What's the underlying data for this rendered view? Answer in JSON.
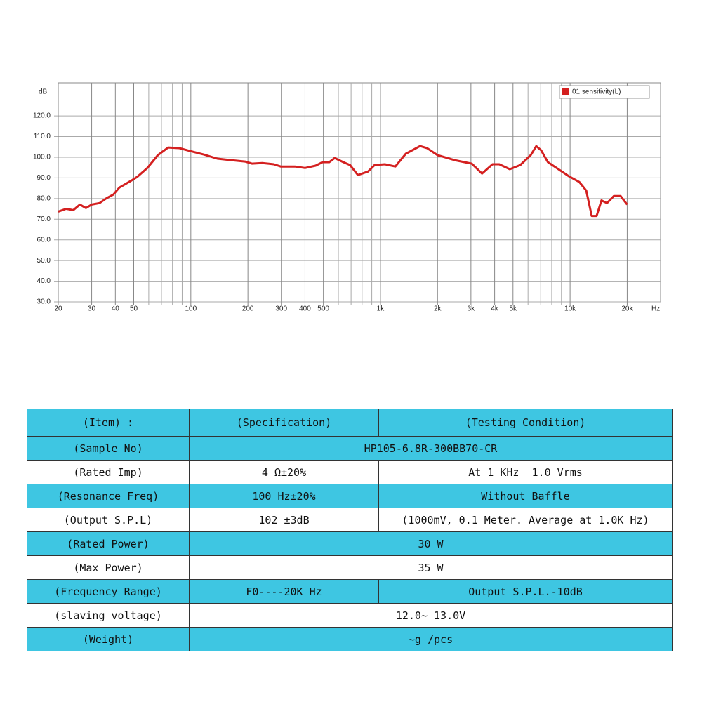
{
  "chart_data": {
    "type": "line",
    "log_x": true,
    "grid": true,
    "legend_position": "upper right",
    "y_label": "dB",
    "x_label": "Hz",
    "xlim": [
      20,
      30000
    ],
    "ylim": [
      30,
      136
    ],
    "xticks": [
      20,
      30,
      40,
      50,
      100,
      200,
      300,
      400,
      500,
      {
        "value": 1000,
        "label": "1k"
      },
      {
        "value": 2000,
        "label": "2k"
      },
      {
        "value": 3000,
        "label": "3k"
      },
      {
        "value": 4000,
        "label": "4k"
      },
      {
        "value": 5000,
        "label": "5k"
      },
      {
        "value": 10000,
        "label": "10k"
      },
      {
        "value": 20000,
        "label": "20k"
      }
    ],
    "x_minor_ticks": [
      60,
      70,
      80,
      90,
      600,
      700,
      800,
      900,
      6000,
      7000,
      8000,
      9000
    ],
    "yticks": [
      {
        "value": 30,
        "label": "30.0"
      },
      {
        "value": 40,
        "label": "40.0"
      },
      {
        "value": 50,
        "label": "50.0"
      },
      {
        "value": 60,
        "label": "60.0"
      },
      {
        "value": 70,
        "label": "70.0"
      },
      {
        "value": 80,
        "label": "80.0"
      },
      {
        "value": 90,
        "label": "90.0"
      },
      {
        "value": 100,
        "label": "100.0"
      },
      {
        "value": 110,
        "label": "110.0"
      },
      {
        "value": 120,
        "label": "120.0"
      }
    ],
    "x": [
      20,
      22,
      24,
      26,
      28,
      30,
      33,
      36,
      39,
      42,
      48,
      52,
      59,
      67,
      76,
      87,
      99,
      117,
      138,
      163,
      193,
      210,
      238,
      274,
      298,
      354,
      400,
      455,
      495,
      537,
      574,
      637,
      691,
      760,
      860,
      932,
      1055,
      1198,
      1360,
      1618,
      1761,
      2000,
      2460,
      3030,
      3430,
      3900,
      4230,
      4810,
      5460,
      6200,
      6630,
      7030,
      7640,
      8680,
      9850,
      11190,
      12160,
      13000,
      13800,
      14640,
      15640,
      17000,
      18470,
      20000
    ],
    "series": [
      {
        "name": "01 sensitivity(L)",
        "color": "#d42020",
        "values": [
          73.7,
          75,
          74.4,
          77.1,
          75.4,
          77.1,
          77.8,
          80.2,
          81.9,
          85.3,
          88.4,
          90.4,
          94.8,
          101,
          104.7,
          104.4,
          103,
          101.3,
          99.3,
          98.6,
          97.9,
          96.9,
          97.2,
          96.6,
          95.5,
          95.5,
          94.8,
          95.9,
          97.6,
          97.6,
          99.6,
          97.6,
          96.2,
          91.4,
          93.1,
          96.2,
          96.6,
          95.5,
          101.7,
          105.4,
          104.4,
          101,
          98.6,
          96.9,
          92.1,
          96.6,
          96.6,
          94.2,
          96.2,
          101,
          105.4,
          103.4,
          97.6,
          94.2,
          90.8,
          88,
          83.9,
          71.6,
          71.6,
          79.1,
          77.8,
          81.2,
          81.2,
          77.1
        ]
      }
    ]
  },
  "table": {
    "header": [
      "(Item) :",
      "(Specification)",
      "(Testing Condition)"
    ],
    "rows": [
      [
        "(Sample No)",
        "HP105-6.8R-300BB70-CR"
      ],
      [
        "(Rated Imp)",
        "4 Ω±20%",
        "At 1 KHz  1.0 Vrms"
      ],
      [
        "(Resonance Freq)",
        "100 Hz±20%",
        "Without Baffle"
      ],
      [
        "(Output S.P.L)",
        "102 ±3dB",
        "(1000mV, 0.1 Meter. Average at 1.0K Hz)"
      ],
      [
        "(Rated Power)",
        "30 W"
      ],
      [
        "(Max Power)",
        "35 W"
      ],
      [
        "(Frequency Range)",
        "F0----20K Hz",
        "Output S.P.L.-10dB"
      ],
      [
        "(slaving voltage)",
        "12.0~ 13.0V"
      ],
      [
        "(Weight)",
        "~g /pcs"
      ]
    ]
  }
}
